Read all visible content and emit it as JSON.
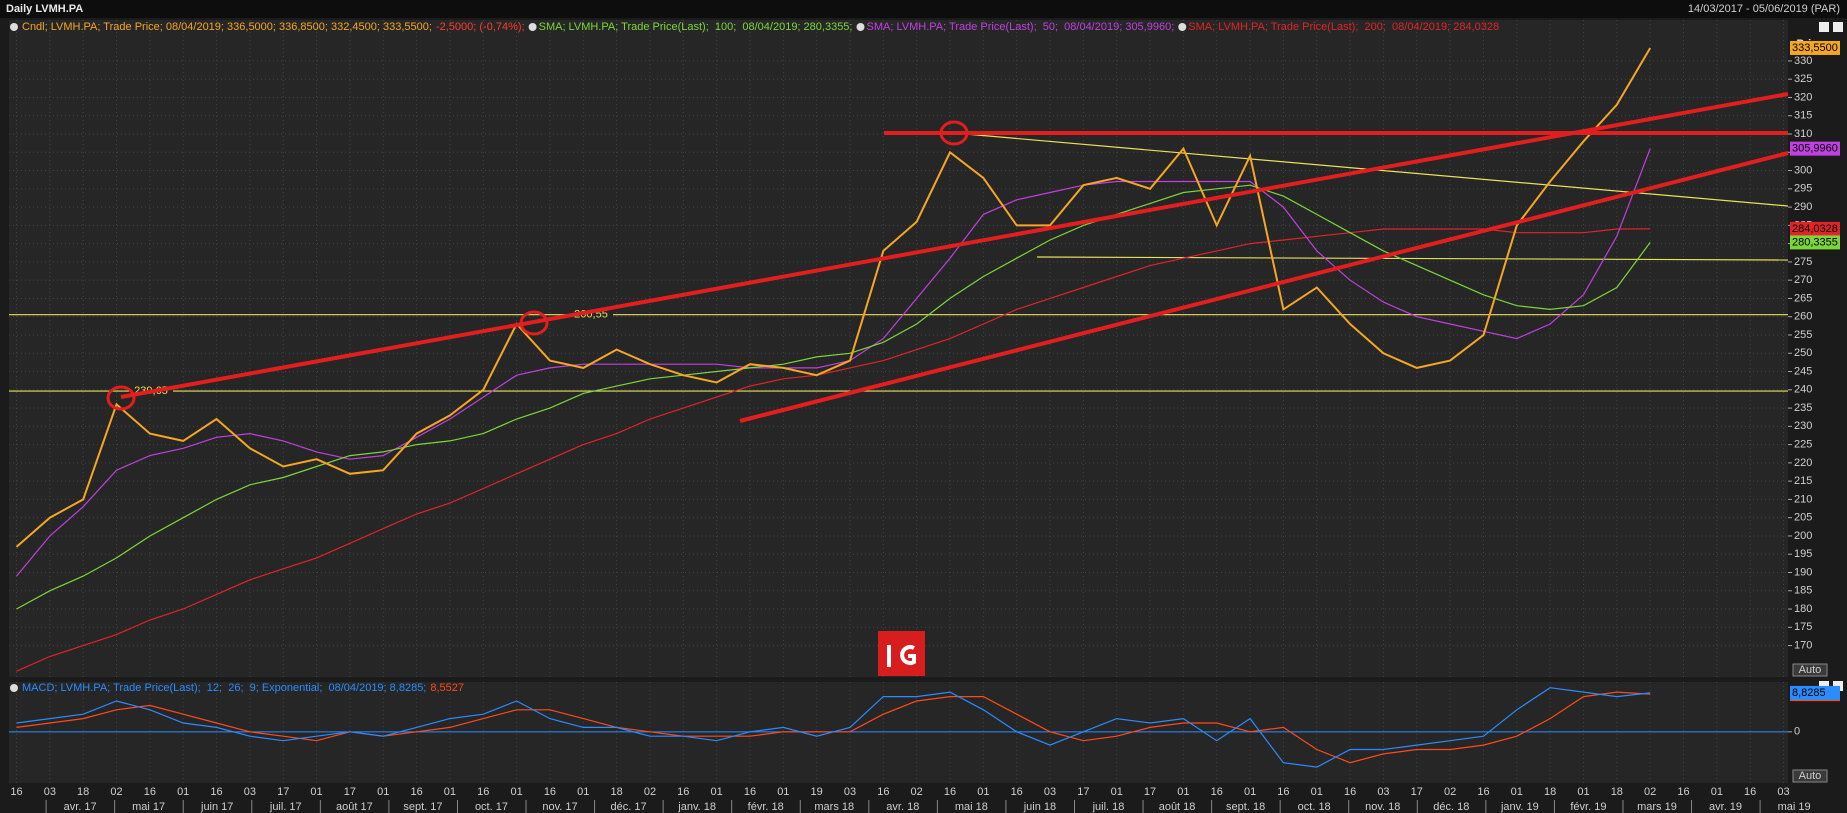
{
  "header": {
    "title": "Daily LVMH.PA",
    "range": "14/03/2017 - 05/06/2019 (PAR)"
  },
  "chart_data": [
    {
      "type": "line",
      "y_label": "Price",
      "autoscale": "Auto",
      "categories": [
        "16",
        "03",
        "18",
        "02",
        "16",
        "01",
        "16",
        "03",
        "17",
        "01",
        "17",
        "01",
        "16",
        "01",
        "16",
        "01",
        "16",
        "01",
        "18",
        "02",
        "16",
        "01",
        "16",
        "01",
        "19",
        "03",
        "16",
        "02",
        "16",
        "01",
        "16",
        "03",
        "17",
        "01",
        "17",
        "01",
        "16",
        "01",
        "16",
        "01",
        "16",
        "03",
        "17",
        "02",
        "16",
        "01",
        "18",
        "01",
        "18",
        "02",
        "16",
        "01",
        "16",
        "03"
      ],
      "month_labels": [
        "avr. 17",
        "mai 17",
        "juin 17",
        "juil. 17",
        "août 17",
        "sept. 17",
        "oct. 17",
        "nov. 17",
        "déc. 17",
        "janv. 18",
        "févr. 18",
        "mars 18",
        "avr. 18",
        "mai 18",
        "juin 18",
        "juil. 18",
        "août 18",
        "sept. 18",
        "oct. 18",
        "nov. 18",
        "déc. 18",
        "janv. 19",
        "févr. 19",
        "mars 19",
        "avr. 19",
        "mai 19"
      ],
      "ylim": [
        161.4,
        341.2
      ],
      "yticks": [
        170,
        175,
        180,
        185,
        190,
        195,
        200,
        205,
        210,
        215,
        220,
        225,
        230,
        235,
        240,
        245,
        250,
        255,
        260,
        265,
        270,
        275,
        280,
        285,
        290,
        295,
        300,
        305,
        310,
        315,
        320,
        325,
        330
      ],
      "grid": true,
      "levels": [
        {
          "value": 239.65,
          "label": "239,65"
        },
        {
          "value": 260.55,
          "label": "260,55"
        }
      ],
      "series": [
        {
          "name": "Cndl; LVMH.PA; Trade Price; 08/04/2019; 336,5000; 336,8500; 332,4500; 333,5500;",
          "change": "-2,5000; (-0,74%);",
          "change_color": "#ff3b30",
          "color": "#f5a623",
          "last_label": "333,5500",
          "values": [
            197,
            205,
            210,
            236,
            228,
            226,
            232,
            224,
            219,
            221,
            217,
            218,
            228,
            233,
            240,
            258,
            248,
            246,
            251,
            247,
            244,
            242,
            247,
            246,
            244,
            248,
            278,
            286,
            305,
            298,
            285,
            285,
            296,
            298,
            295,
            306,
            285,
            304,
            262,
            268,
            258,
            250,
            246,
            248,
            255,
            285,
            297,
            308,
            318,
            333.55,
            null,
            null,
            null,
            null
          ]
        },
        {
          "name": "SMA; LVMH.PA; Trade Price(Last);  100;  08/04/2019; 280,3355;",
          "color": "#7cd63a",
          "last_label": "280,3355",
          "values": [
            180,
            185,
            189,
            194,
            200,
            205,
            210,
            214,
            216,
            219,
            222,
            223,
            225,
            226,
            228,
            232,
            235,
            239,
            241,
            243,
            244,
            245,
            246,
            247,
            249,
            250,
            253,
            258,
            265,
            271,
            276,
            281,
            285,
            288,
            291,
            294,
            295,
            296,
            293,
            288,
            283,
            278,
            274,
            270,
            266,
            263,
            262,
            263,
            268,
            280.3355,
            null,
            null,
            null,
            null
          ]
        },
        {
          "name": "SMA; LVMH.PA; Trade Price(Last);  50;  08/04/2019; 305,9960;",
          "color": "#c040e0",
          "last_label": "305,9960",
          "values": [
            189,
            200,
            208,
            218,
            222,
            224,
            227,
            228,
            226,
            223,
            221,
            222,
            227,
            232,
            238,
            244,
            246,
            247,
            247,
            247,
            247,
            247,
            246,
            246,
            246,
            248,
            254,
            265,
            276,
            288,
            292,
            294,
            296,
            297,
            297,
            297,
            297,
            297,
            290,
            278,
            270,
            264,
            260,
            258,
            256,
            254,
            258,
            266,
            282,
            305.996,
            null,
            null,
            null,
            null
          ]
        },
        {
          "name": "SMA; LVMH.PA; Trade Price(Last);  200;  08/04/2019; 284,0328",
          "color": "#e0242a",
          "last_label": "284,0328",
          "values": [
            163,
            167,
            170,
            173,
            177,
            180,
            184,
            188,
            191,
            194,
            198,
            202,
            206,
            209,
            213,
            217,
            221,
            225,
            228,
            232,
            235,
            238,
            241,
            243,
            244,
            246,
            248,
            251,
            254,
            258,
            262,
            265,
            268,
            271,
            274,
            276,
            278,
            280,
            281,
            282,
            283,
            284,
            284,
            284,
            284,
            283,
            283,
            283,
            284,
            284.0328,
            null,
            null,
            null,
            null
          ]
        }
      ]
    },
    {
      "type": "line",
      "autoscale": "Auto",
      "ylim": [
        -11.6,
        11.3
      ],
      "yticks": [
        0
      ],
      "series": [
        {
          "name": "MACD; LVMH.PA; Trade Price(Last);  12;  26;  9; Exponential;  08/04/2019; 8,8285;",
          "color": "#2a8cff",
          "last_label": "8,8285",
          "values": [
            2,
            3,
            4,
            7,
            5,
            2,
            1,
            -1,
            -2,
            -1,
            0,
            -1,
            1,
            3,
            4,
            7,
            3,
            1,
            1,
            -1,
            -1,
            -2,
            0,
            1,
            -1,
            1,
            8,
            8,
            9,
            5,
            0,
            -3,
            0,
            3,
            2,
            3,
            -2,
            3,
            -7,
            -8,
            -4,
            -4,
            -3,
            -2,
            -1,
            5,
            10,
            9,
            8,
            8.8285,
            null,
            null,
            null,
            null
          ]
        },
        {
          "name": "8,5527",
          "color": "#ff4a1c",
          "last_label": "8,5527",
          "values": [
            1,
            2,
            3,
            5,
            6,
            4,
            2,
            0,
            -1,
            -2,
            0,
            -1,
            0,
            1,
            3,
            5,
            5,
            3,
            1,
            0,
            -1,
            -1,
            -1,
            0,
            0,
            0,
            4,
            7,
            8,
            8,
            4,
            0,
            -2,
            -1,
            1,
            2,
            2,
            0,
            1,
            -4,
            -7,
            -5,
            -4,
            -4,
            -3,
            -1,
            3,
            8,
            9,
            8.5527,
            null,
            null,
            null,
            null
          ]
        }
      ]
    }
  ]
}
